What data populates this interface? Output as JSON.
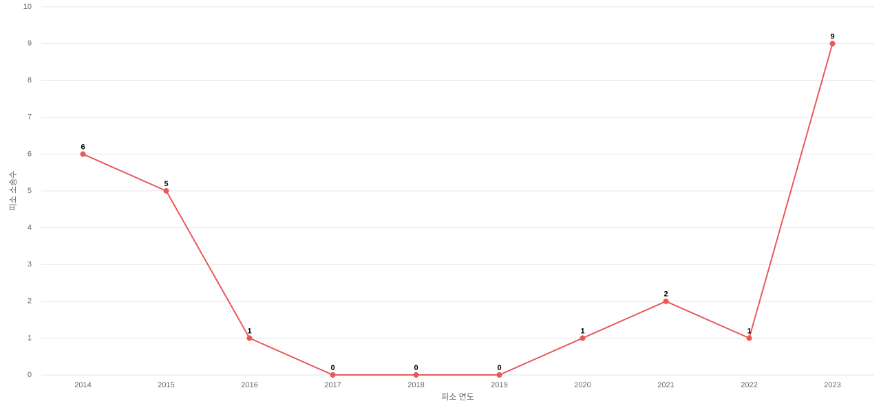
{
  "chart_data": {
    "type": "line",
    "x_label": "피소 연도",
    "y_label": "피소 소송수",
    "categories": [
      "2014",
      "2015",
      "2016",
      "2017",
      "2018",
      "2019",
      "2020",
      "2021",
      "2022",
      "2023"
    ],
    "values": [
      6,
      5,
      1,
      0,
      0,
      0,
      1,
      2,
      1,
      9
    ],
    "color": "#e85858",
    "ylim": [
      0,
      10
    ],
    "yticks": [
      0,
      1,
      2,
      3,
      4,
      5,
      6,
      7,
      8,
      9,
      10
    ],
    "grid": true
  }
}
